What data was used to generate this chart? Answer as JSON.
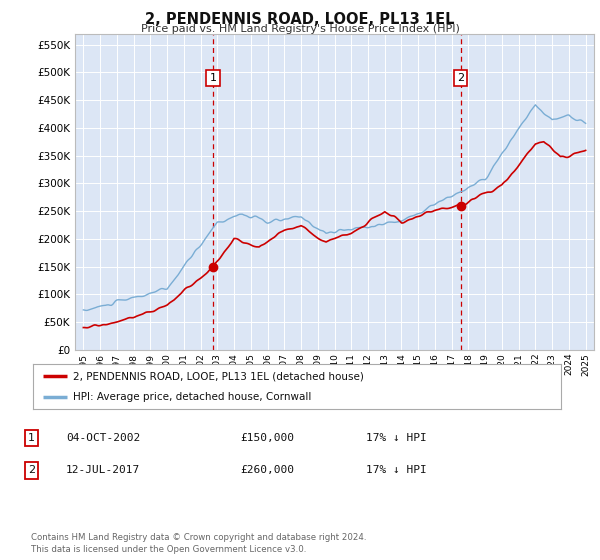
{
  "title": "2, PENDENNIS ROAD, LOOE, PL13 1EL",
  "subtitle": "Price paid vs. HM Land Registry's House Price Index (HPI)",
  "background_color": "#ffffff",
  "plot_bg_color": "#dce6f5",
  "grid_color": "#ffffff",
  "sale1_date": 2002.75,
  "sale1_price": 150000,
  "sale2_date": 2017.53,
  "sale2_price": 260000,
  "ylim_min": 0,
  "ylim_max": 570000,
  "xlim_min": 1994.5,
  "xlim_max": 2025.5,
  "legend_label_red": "2, PENDENNIS ROAD, LOOE, PL13 1EL (detached house)",
  "legend_label_blue": "HPI: Average price, detached house, Cornwall",
  "footnote": "Contains HM Land Registry data © Crown copyright and database right 2024.\nThis data is licensed under the Open Government Licence v3.0.",
  "table_rows": [
    [
      "1",
      "04-OCT-2002",
      "£150,000",
      "17% ↓ HPI"
    ],
    [
      "2",
      "12-JUL-2017",
      "£260,000",
      "17% ↓ HPI"
    ]
  ],
  "red_line_color": "#cc0000",
  "blue_line_color": "#7aadd4",
  "dashed_line_color": "#cc0000",
  "yticks": [
    0,
    50000,
    100000,
    150000,
    200000,
    250000,
    300000,
    350000,
    400000,
    450000,
    500000,
    550000
  ]
}
